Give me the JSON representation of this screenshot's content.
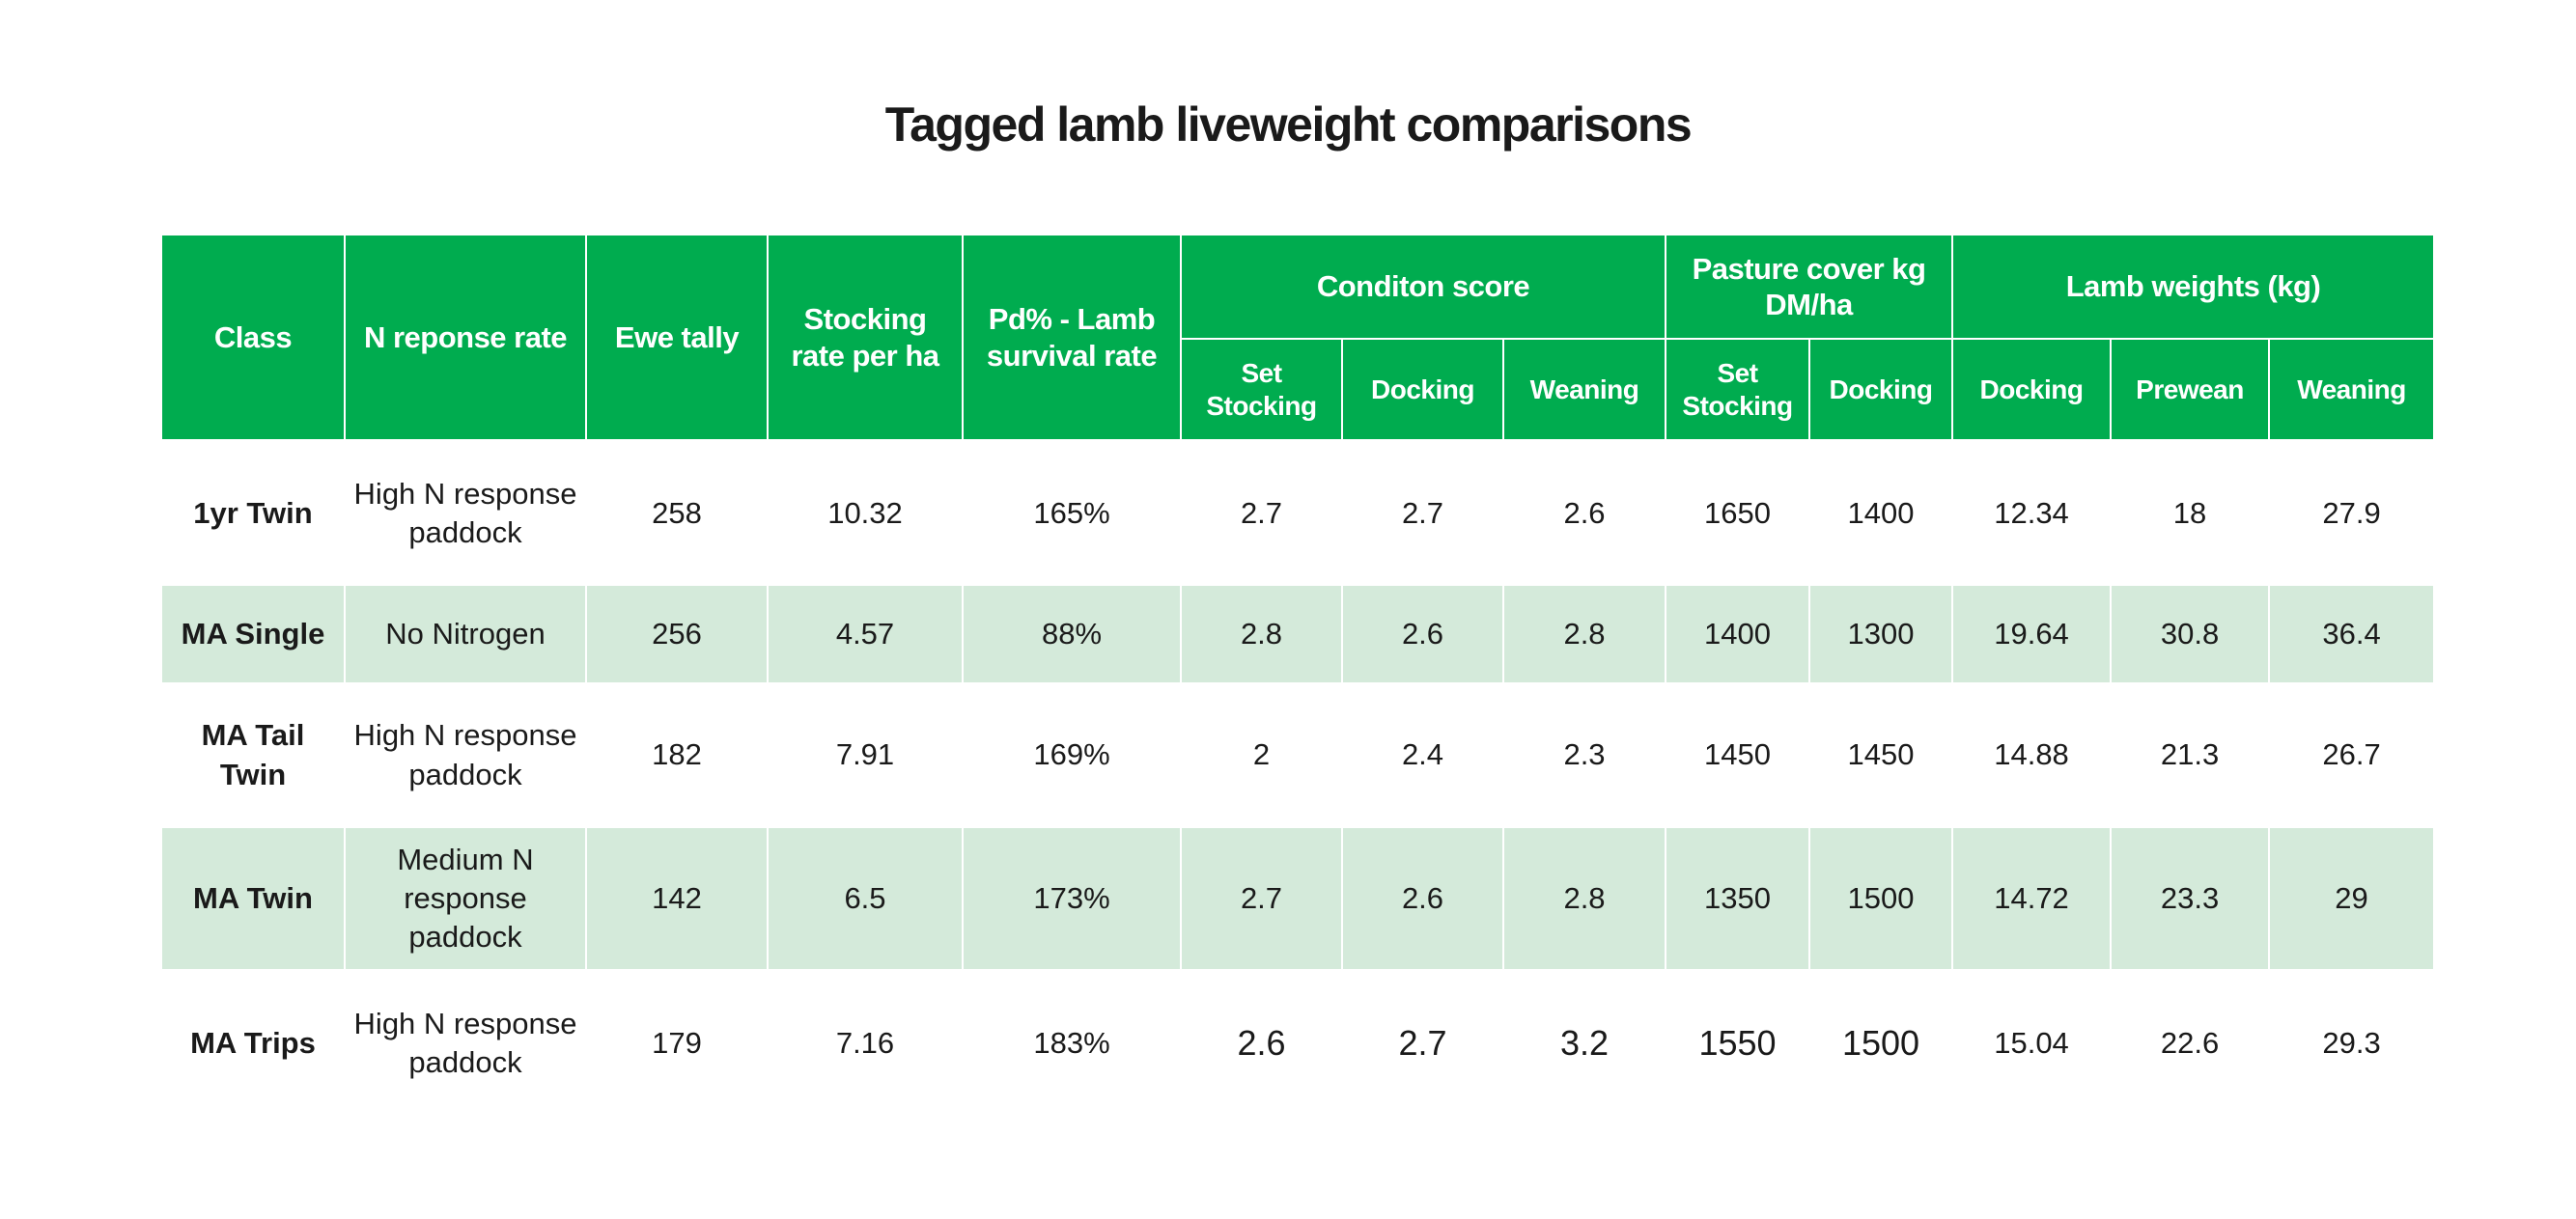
{
  "title": "Tagged lamb liveweight comparisons",
  "header": {
    "class": "Class",
    "n_response": "N reponse rate",
    "ewe_tally": "Ewe tally",
    "stocking_rate": "Stocking rate per ha",
    "pd_lamb": "Pd% - Lamb survival rate",
    "condition_score": "Conditon score",
    "pasture_cover": "Pasture cover kg DM/ha",
    "lamb_weights": "Lamb weights (kg)",
    "cs_set_stocking": "Set Stocking",
    "cs_docking": "Docking",
    "cs_weaning": "Weaning",
    "pc_set_stocking": "Set Stocking",
    "pc_docking": "Docking",
    "lw_docking": "Docking",
    "lw_prewean": "Prewean",
    "lw_weaning": "Weaning"
  },
  "rows": [
    {
      "class": "1yr Twin",
      "n_response": "High N response paddock",
      "ewe_tally": "258",
      "stocking_rate": "10.32",
      "pd_lamb": "165%",
      "cs_set": "2.7",
      "cs_docking": "2.7",
      "cs_weaning": "2.6",
      "pc_set": "1650",
      "pc_docking": "1400",
      "lw_docking": "12.34",
      "lw_prewean": "18",
      "lw_weaning": "27.9"
    },
    {
      "class": "MA Single",
      "n_response": "No Nitrogen",
      "ewe_tally": "256",
      "stocking_rate": "4.57",
      "pd_lamb": "88%",
      "cs_set": "2.8",
      "cs_docking": "2.6",
      "cs_weaning": "2.8",
      "pc_set": "1400",
      "pc_docking": "1300",
      "lw_docking": "19.64",
      "lw_prewean": "30.8",
      "lw_weaning": "36.4"
    },
    {
      "class": "MA Tail Twin",
      "n_response": "High N response paddock",
      "ewe_tally": "182",
      "stocking_rate": "7.91",
      "pd_lamb": "169%",
      "cs_set": "2",
      "cs_docking": "2.4",
      "cs_weaning": "2.3",
      "pc_set": "1450",
      "pc_docking": "1450",
      "lw_docking": "14.88",
      "lw_prewean": "21.3",
      "lw_weaning": "26.7"
    },
    {
      "class": "MA Twin",
      "n_response": "Medium N response paddock",
      "ewe_tally": "142",
      "stocking_rate": "6.5",
      "pd_lamb": "173%",
      "cs_set": "2.7",
      "cs_docking": "2.6",
      "cs_weaning": "2.8",
      "pc_set": "1350",
      "pc_docking": "1500",
      "lw_docking": "14.72",
      "lw_prewean": "23.3",
      "lw_weaning": "29"
    },
    {
      "class": "MA Trips",
      "n_response": "High N response paddock",
      "ewe_tally": "179",
      "stocking_rate": "7.16",
      "pd_lamb": "183%",
      "cs_set": "2.6",
      "cs_docking": "2.7",
      "cs_weaning": "3.2",
      "pc_set": "1550",
      "pc_docking": "1500",
      "lw_docking": "15.04",
      "lw_prewean": "22.6",
      "lw_weaning": "29.3"
    }
  ],
  "colors": {
    "header_green": "#00ac4f",
    "row_alt": "#d4eada",
    "text": "#1a1a1a"
  }
}
